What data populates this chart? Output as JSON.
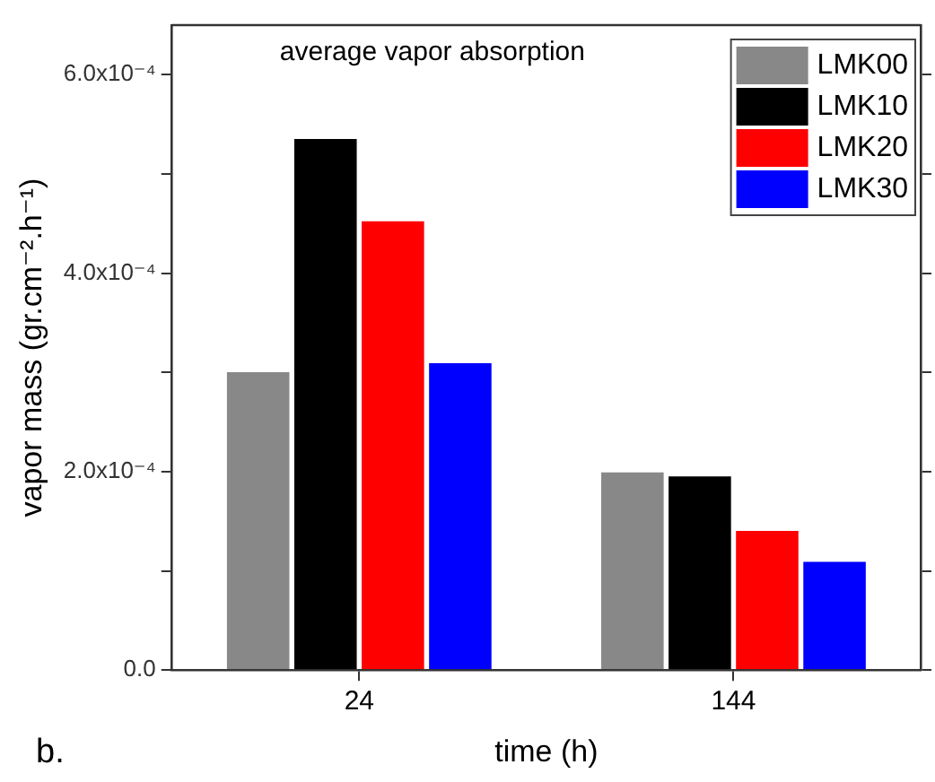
{
  "chart_data": {
    "type": "bar",
    "title": "average vapor absorption",
    "xlabel": "time (h)",
    "ylabel": "vapor mass (gr.cm⁻².h⁻¹)",
    "categories": [
      "24",
      "144"
    ],
    "series": [
      {
        "name": "LMK00",
        "color": "#888888",
        "values": [
          0.000302,
          0.000201
        ]
      },
      {
        "name": "LMK10",
        "color": "#000000",
        "values": [
          0.000537,
          0.000197
        ]
      },
      {
        "name": "LMK20",
        "color": "#ff0000",
        "values": [
          0.000454,
          0.000142
        ]
      },
      {
        "name": "LMK30",
        "color": "#0000ff",
        "values": [
          0.000311,
          0.000111
        ]
      }
    ],
    "ylim": [
      0,
      0.00065
    ],
    "yticks": [
      {
        "value": 0,
        "label": "0.0"
      },
      {
        "value": 0.0001,
        "label": null
      },
      {
        "value": 0.0002,
        "label": "2.0x10⁻⁴"
      },
      {
        "value": 0.0003,
        "label": null
      },
      {
        "value": 0.0004,
        "label": "4.0x10⁻⁴"
      },
      {
        "value": 0.0005,
        "label": null
      },
      {
        "value": 0.0006,
        "label": "6.0x10⁻⁴"
      }
    ],
    "legend": "top right",
    "grid": false,
    "annotations": [
      "b."
    ]
  }
}
